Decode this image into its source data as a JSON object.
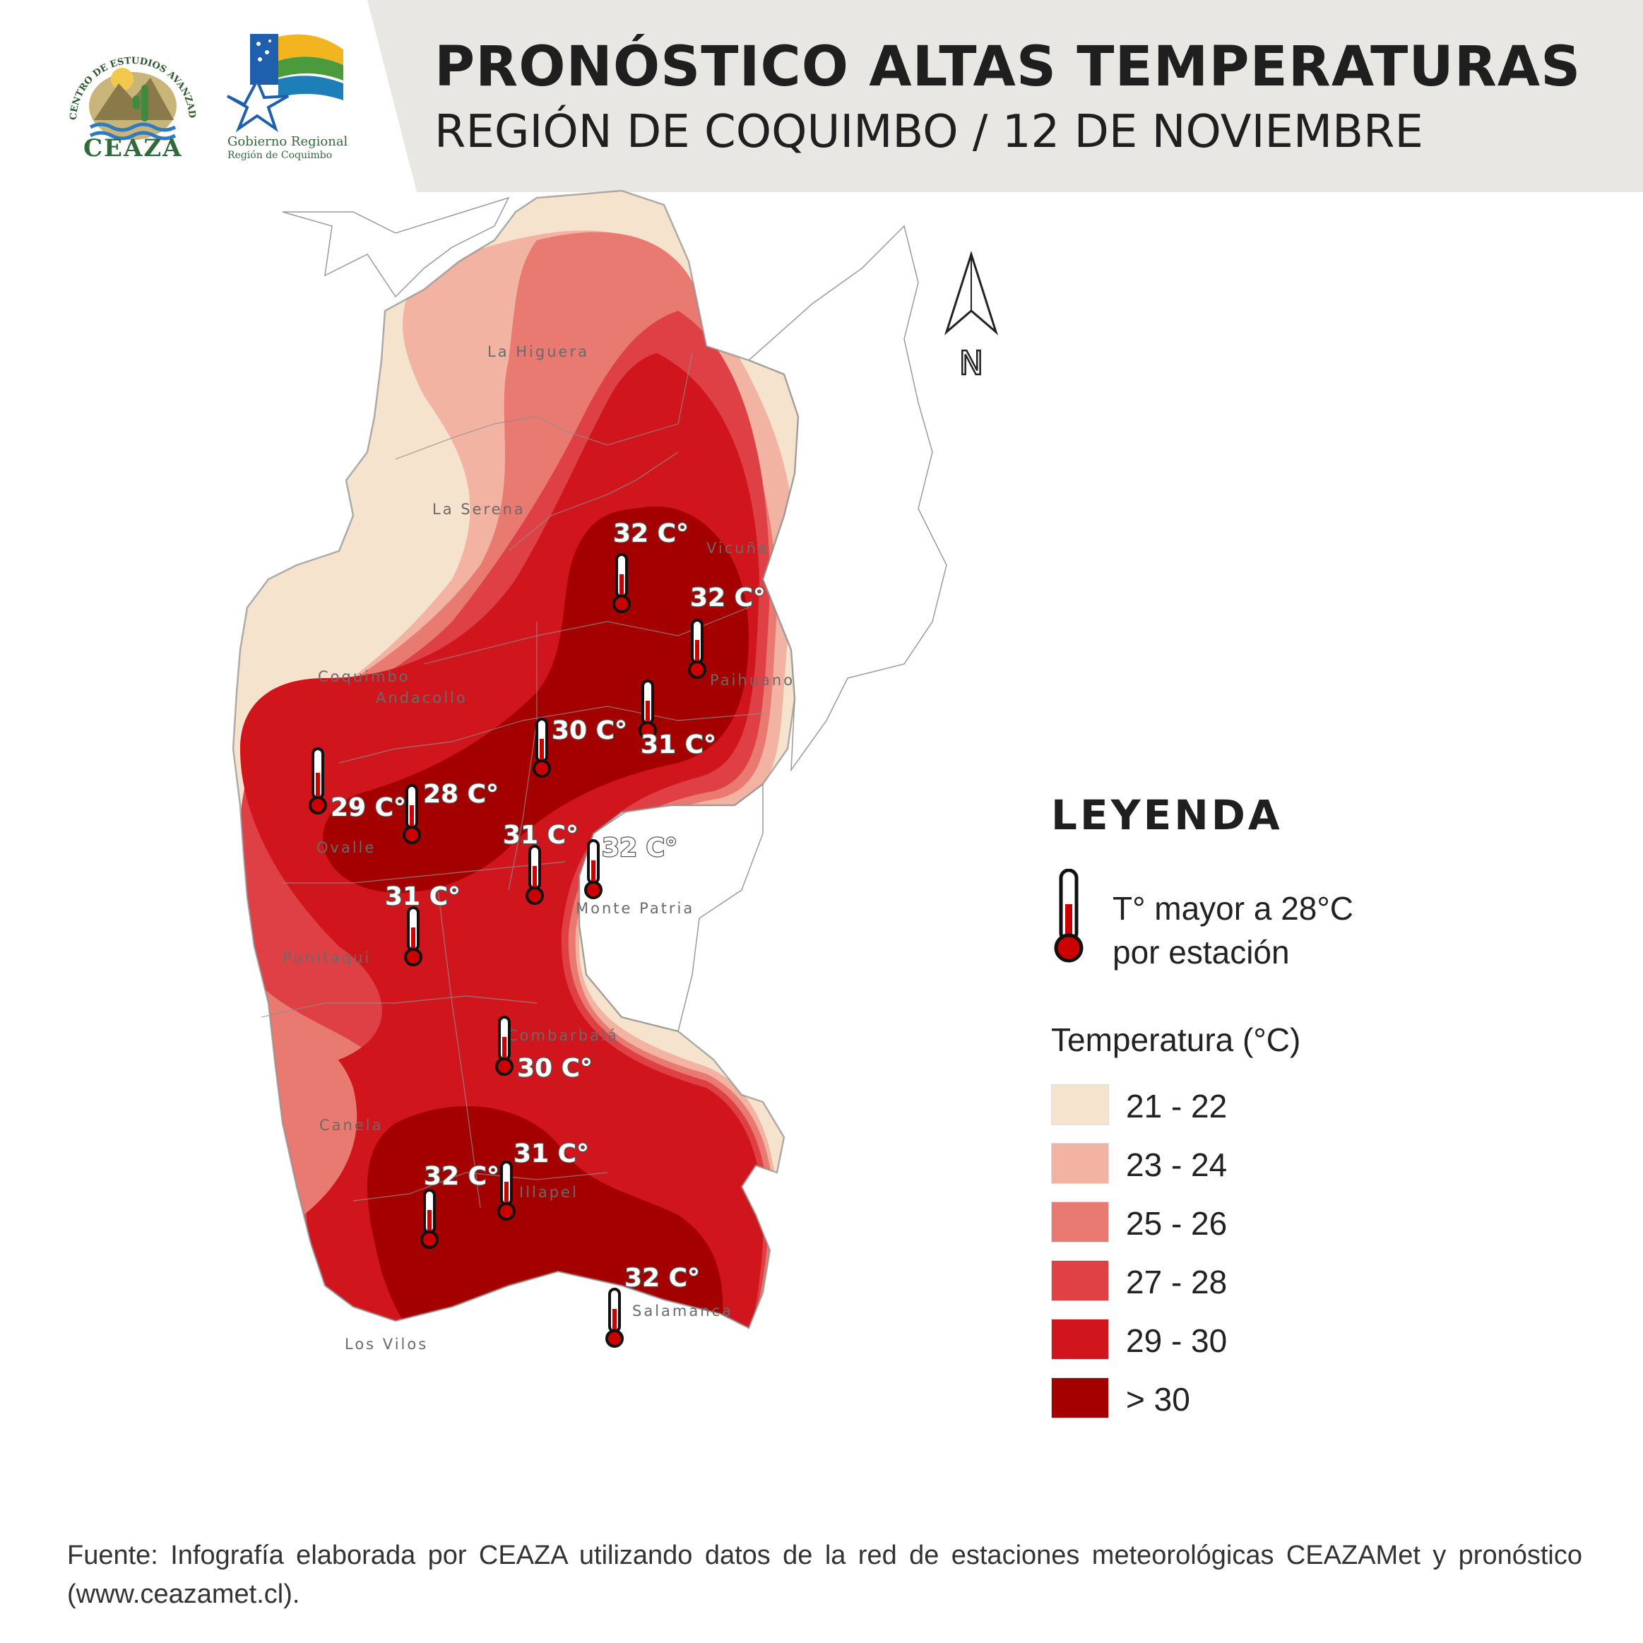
{
  "header": {
    "title": "PRONÓSTICO ALTAS TEMPERATURAS",
    "subtitle": "REGIÓN DE COQUIMBO / 12 DE NOVIEMBRE",
    "logos": {
      "ceaza_arc_text": "CENTRO DE ESTUDIOS AVANZADOS EN ZONAS ÁRIDAS",
      "ceaza_name": "CEAZA",
      "gobierno_line1": "Gobierno Regional",
      "gobierno_line2": "Región de Coquimbo"
    }
  },
  "map": {
    "north_label": "N",
    "places": [
      {
        "id": "la-higuera",
        "name": "La Higuera"
      },
      {
        "id": "la-serena",
        "name": "La Serena"
      },
      {
        "id": "vicuna",
        "name": "Vicuña"
      },
      {
        "id": "coquimbo",
        "name": "Coquimbo"
      },
      {
        "id": "andacollo",
        "name": "Andacollo"
      },
      {
        "id": "paihuano",
        "name": "Paihuano"
      },
      {
        "id": "ovalle",
        "name": "Ovalle"
      },
      {
        "id": "monte-patria",
        "name": "Monte Patria"
      },
      {
        "id": "punitaqui",
        "name": "Punitaqui"
      },
      {
        "id": "combarbala",
        "name": "Combarbalá"
      },
      {
        "id": "canela",
        "name": "Canela"
      },
      {
        "id": "illapel",
        "name": "Illapel"
      },
      {
        "id": "los-vilos",
        "name": "Los Vilos"
      },
      {
        "id": "salamanca",
        "name": "Salamanca"
      }
    ],
    "stations": [
      {
        "id": "s1",
        "value": "32 C°"
      },
      {
        "id": "s2",
        "value": "32 C°"
      },
      {
        "id": "s3",
        "value": "30 C°"
      },
      {
        "id": "s4",
        "value": "31 C°"
      },
      {
        "id": "s5",
        "value": "29 C°"
      },
      {
        "id": "s6",
        "value": "28 C°"
      },
      {
        "id": "s7",
        "value": "31 C°"
      },
      {
        "id": "s8",
        "value": "32 C°"
      },
      {
        "id": "s9",
        "value": "31 C°"
      },
      {
        "id": "s10",
        "value": "30 C°"
      },
      {
        "id": "s11",
        "value": "31 C°"
      },
      {
        "id": "s12",
        "value": "32 C°"
      },
      {
        "id": "s13",
        "value": "32 C°"
      }
    ]
  },
  "legend": {
    "title": "LEYENDA",
    "station_line1": "T° mayor a 28°C",
    "station_line2": "por estación",
    "range_title": "Temperatura (°C)",
    "ranges": [
      {
        "label": "21 - 22",
        "color": "#f6e3cd"
      },
      {
        "label": "23 - 24",
        "color": "#f2b3a3"
      },
      {
        "label": "25 - 26",
        "color": "#e97a72"
      },
      {
        "label": "27 - 28",
        "color": "#df4144"
      },
      {
        "label": "29 - 30",
        "color": "#d0151c"
      },
      {
        "label": "> 30",
        "color": "#a40000"
      }
    ]
  },
  "footer": {
    "text": "Fuente: Infografía elaborada por CEAZA utilizando datos de la red de estaciones meteorológicas CEAZAMet y pronóstico (www.ceazamet.cl)."
  }
}
